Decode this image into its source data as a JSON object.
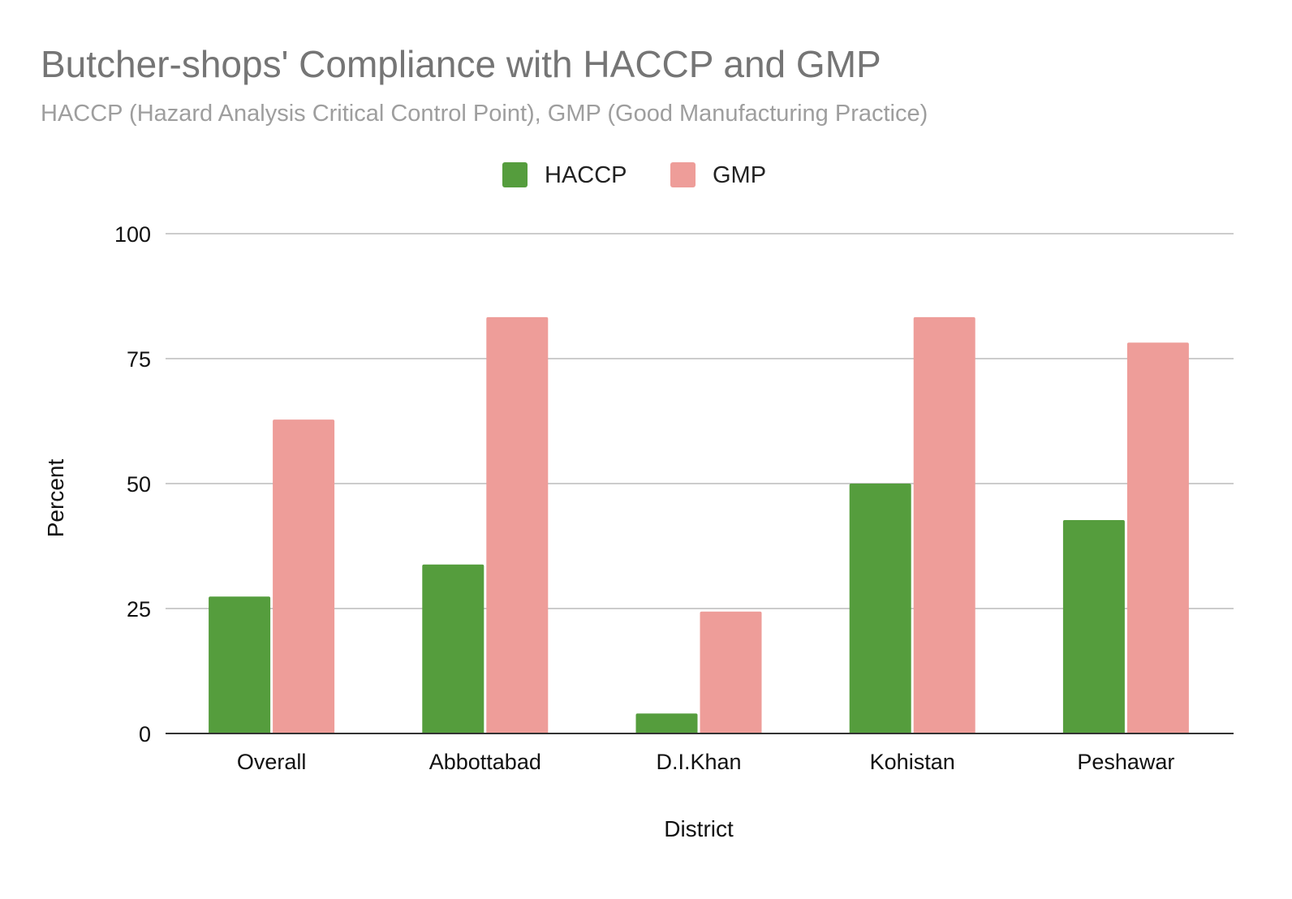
{
  "chart_data": {
    "type": "bar",
    "title": "Butcher-shops' Compliance with HACCP and GMP",
    "subtitle": "HACCP (Hazard Analysis Critical Control Point), GMP (Good Manufacturing Practice)",
    "xlabel": "District",
    "ylabel": "Percent",
    "categories": [
      "Overall",
      "Abbottabad",
      "D.I.Khan",
      "Kohistan",
      "Peshawar"
    ],
    "series": [
      {
        "name": "HACCP",
        "color": "#559d3d",
        "values": [
          27.4,
          33.8,
          4,
          50,
          42.7
        ]
      },
      {
        "name": "GMP",
        "color": "#ee9d99",
        "values": [
          62.8,
          83.3,
          24.4,
          83.3,
          78.2
        ]
      }
    ],
    "ylim": [
      0,
      100
    ],
    "yticks": [
      "0",
      "25",
      "50",
      "75",
      "100"
    ],
    "grid": true,
    "legend_position": "top-center"
  }
}
